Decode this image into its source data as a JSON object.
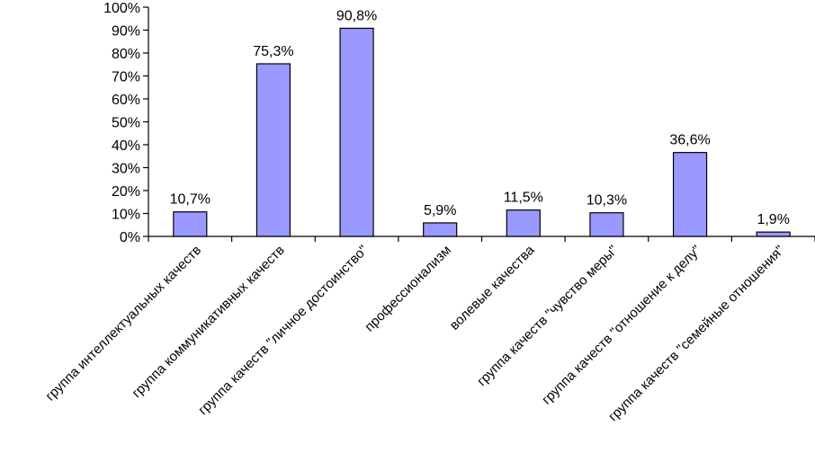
{
  "chart_data": {
    "type": "bar",
    "categories": [
      "группа интеллектуальных качеств",
      "группа коммуникативных качеств",
      "группа качеств \"личное достоинство\"",
      "профессионализм",
      "волевые качества",
      "группа качеств \"чувство меры\"",
      "группа качеств \"отношение к делу\"",
      "группа качеств \"семейные отношения\""
    ],
    "values": [
      10.7,
      75.3,
      90.8,
      5.9,
      11.5,
      10.3,
      36.6,
      1.9
    ],
    "data_labels": [
      "10,7%",
      "75,3%",
      "90,8%",
      "5,9%",
      "11,5%",
      "10,3%",
      "36,6%",
      "1,9%"
    ],
    "yticks": [
      "0%",
      "10%",
      "20%",
      "30%",
      "40%",
      "50%",
      "60%",
      "70%",
      "80%",
      "90%",
      "100%"
    ],
    "ylim": [
      0,
      100
    ],
    "grid": false,
    "legend": "none",
    "bar_color": "#9999ff",
    "bar_edge_color": "#000000"
  }
}
